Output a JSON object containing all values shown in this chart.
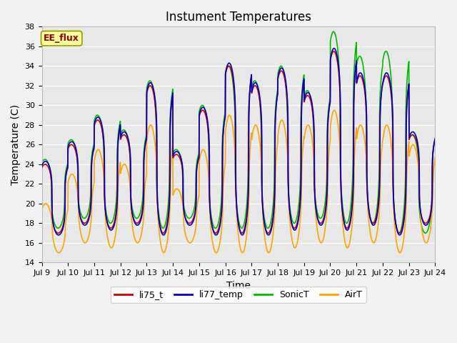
{
  "title": "Instument Temperatures",
  "xlabel": "Time",
  "ylabel": "Temperature (C)",
  "annotation": "EE_flux",
  "annotation_color": "#8B0000",
  "annotation_bg": "#FFFF99",
  "annotation_border": "#999900",
  "ylim": [
    14,
    38
  ],
  "yticks": [
    14,
    16,
    18,
    20,
    22,
    24,
    26,
    28,
    30,
    32,
    34,
    36,
    38
  ],
  "x_labels": [
    "Jul 9",
    "Jul 10",
    "Jul 11",
    "Jul 12",
    "Jul 13",
    "Jul 14",
    "Jul 15",
    "Jul 16",
    "Jul 17",
    "Jul 18",
    "Jul 19",
    "Jul 20",
    "Jul 21",
    "Jul 22",
    "Jul 23",
    "Jul 24"
  ],
  "series_colors": {
    "li75_t": "#CC0000",
    "li77_temp": "#0000CC",
    "SonicT": "#00BB00",
    "AirT": "#FFA500"
  },
  "linewidth": 1.2,
  "bg_color": "#E8E8E8",
  "grid_color": "#FFFFFF",
  "title_fontsize": 12,
  "tick_fontsize": 8,
  "axis_fontsize": 10,
  "day_peaks": [
    24,
    26,
    28.5,
    27,
    32,
    25,
    29.5,
    34,
    32,
    33.5,
    31,
    35.5,
    33,
    33,
    27
  ],
  "day_mins_rb": [
    17,
    18,
    17.5,
    18,
    17,
    18,
    17,
    17,
    17,
    17.5,
    18,
    17.5,
    18,
    17,
    18
  ],
  "sonic_peak_offsets": [
    0.5,
    0.5,
    0.5,
    0.5,
    0.5,
    0.5,
    0.5,
    0,
    0.5,
    0.5,
    0.5,
    2,
    2,
    2.5,
    0
  ],
  "sonic_min_offsets": [
    0.5,
    0.5,
    0.5,
    0.5,
    0.5,
    0.5,
    0.5,
    0.5,
    0.5,
    0.5,
    0.5,
    0.5,
    0,
    0,
    -1
  ],
  "air_peak_offsets": [
    -4,
    -3,
    -3,
    -3,
    -4,
    -3.5,
    -4,
    -5,
    -4,
    -5,
    -3,
    -6,
    -5,
    -5,
    -1
  ],
  "air_min_offsets": [
    -2,
    -2,
    -2,
    -2,
    -2,
    -2,
    -2,
    -2,
    -2,
    -2,
    -2,
    -2,
    -2,
    -2,
    -2
  ]
}
